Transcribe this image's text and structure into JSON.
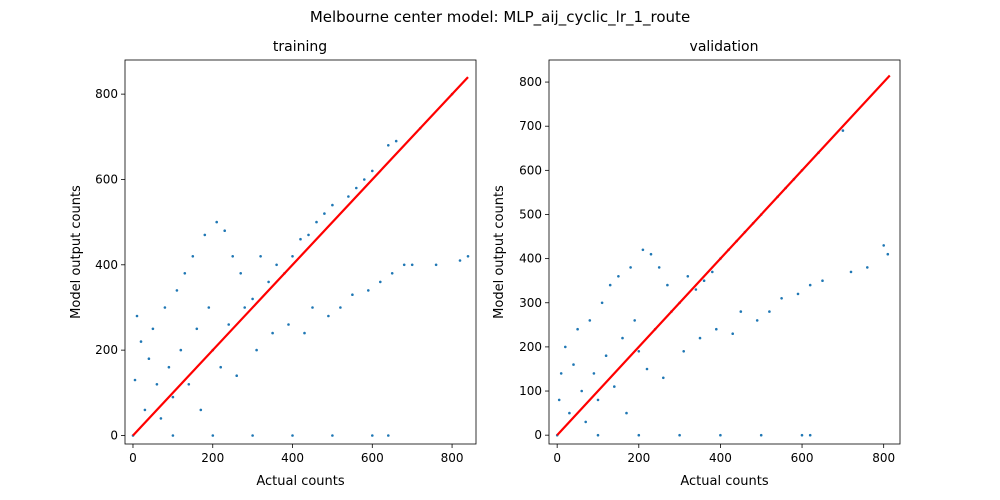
{
  "figure": {
    "suptitle": "Melbourne center model:  MLP_aij_cyclic_lr_1_route"
  },
  "colors": {
    "scatter": "#1f77b4",
    "fit_line": "#ff0000",
    "axes": "#000000",
    "background": "#ffffff"
  },
  "chart_data": [
    {
      "type": "scatter",
      "title": "training",
      "xlabel": "Actual counts",
      "ylabel": "Model output counts",
      "xlim": [
        -20,
        860
      ],
      "ylim": [
        -20,
        880
      ],
      "xticks": [
        0,
        200,
        400,
        600,
        800
      ],
      "yticks": [
        0,
        200,
        400,
        600,
        800
      ],
      "grid": false,
      "series": [
        {
          "kind": "scatter",
          "description_values": [
            [
              0,
              0
            ],
            [
              5,
              130
            ],
            [
              10,
              280
            ],
            [
              20,
              220
            ],
            [
              30,
              60
            ],
            [
              40,
              180
            ],
            [
              50,
              250
            ],
            [
              60,
              120
            ],
            [
              70,
              40
            ],
            [
              80,
              300
            ],
            [
              90,
              160
            ],
            [
              100,
              90
            ],
            [
              110,
              340
            ],
            [
              120,
              200
            ],
            [
              130,
              380
            ],
            [
              140,
              120
            ],
            [
              150,
              420
            ],
            [
              160,
              250
            ],
            [
              170,
              60
            ],
            [
              180,
              470
            ],
            [
              190,
              300
            ],
            [
              200,
              200
            ],
            [
              210,
              500
            ],
            [
              220,
              160
            ],
            [
              230,
              480
            ],
            [
              240,
              260
            ],
            [
              250,
              420
            ],
            [
              260,
              140
            ],
            [
              270,
              380
            ],
            [
              280,
              300
            ],
            [
              300,
              320
            ],
            [
              310,
              200
            ],
            [
              320,
              420
            ],
            [
              340,
              360
            ],
            [
              350,
              240
            ],
            [
              360,
              400
            ],
            [
              380,
              380
            ],
            [
              390,
              260
            ],
            [
              400,
              420
            ],
            [
              420,
              460
            ],
            [
              430,
              240
            ],
            [
              440,
              470
            ],
            [
              450,
              300
            ],
            [
              460,
              500
            ],
            [
              480,
              520
            ],
            [
              490,
              280
            ],
            [
              500,
              540
            ],
            [
              520,
              300
            ],
            [
              540,
              560
            ],
            [
              550,
              330
            ],
            [
              560,
              580
            ],
            [
              580,
              600
            ],
            [
              590,
              340
            ],
            [
              600,
              620
            ],
            [
              620,
              360
            ],
            [
              640,
              680
            ],
            [
              650,
              380
            ],
            [
              660,
              690
            ],
            [
              680,
              400
            ],
            [
              700,
              400
            ],
            [
              720,
              720
            ],
            [
              760,
              400
            ],
            [
              800,
              800
            ],
            [
              820,
              410
            ],
            [
              840,
              420
            ],
            [
              100,
              0
            ],
            [
              200,
              0
            ],
            [
              300,
              0
            ],
            [
              400,
              0
            ],
            [
              500,
              0
            ],
            [
              600,
              0
            ],
            [
              640,
              0
            ]
          ]
        },
        {
          "kind": "line",
          "x": [
            0,
            840
          ],
          "y": [
            0,
            840
          ]
        }
      ]
    },
    {
      "type": "scatter",
      "title": "validation",
      "xlabel": "Actual counts",
      "ylabel": "Model output counts",
      "xlim": [
        -20,
        840
      ],
      "ylim": [
        -20,
        850
      ],
      "xticks": [
        0,
        200,
        400,
        600,
        800
      ],
      "yticks": [
        0,
        100,
        200,
        300,
        400,
        500,
        600,
        700,
        800
      ],
      "grid": false,
      "series": [
        {
          "kind": "scatter",
          "description_values": [
            [
              0,
              0
            ],
            [
              5,
              80
            ],
            [
              10,
              140
            ],
            [
              20,
              200
            ],
            [
              30,
              50
            ],
            [
              40,
              160
            ],
            [
              50,
              240
            ],
            [
              60,
              100
            ],
            [
              70,
              30
            ],
            [
              80,
              260
            ],
            [
              90,
              140
            ],
            [
              100,
              80
            ],
            [
              110,
              300
            ],
            [
              120,
              180
            ],
            [
              130,
              340
            ],
            [
              140,
              110
            ],
            [
              150,
              360
            ],
            [
              160,
              220
            ],
            [
              170,
              50
            ],
            [
              180,
              380
            ],
            [
              190,
              260
            ],
            [
              200,
              190
            ],
            [
              210,
              420
            ],
            [
              220,
              150
            ],
            [
              230,
              410
            ],
            [
              240,
              240
            ],
            [
              250,
              380
            ],
            [
              260,
              130
            ],
            [
              270,
              340
            ],
            [
              280,
              280
            ],
            [
              300,
              300
            ],
            [
              310,
              190
            ],
            [
              320,
              360
            ],
            [
              340,
              330
            ],
            [
              350,
              220
            ],
            [
              360,
              350
            ],
            [
              380,
              370
            ],
            [
              390,
              240
            ],
            [
              400,
              400
            ],
            [
              420,
              420
            ],
            [
              430,
              230
            ],
            [
              440,
              440
            ],
            [
              450,
              280
            ],
            [
              460,
              460
            ],
            [
              480,
              480
            ],
            [
              490,
              260
            ],
            [
              500,
              500
            ],
            [
              520,
              280
            ],
            [
              540,
              540
            ],
            [
              550,
              310
            ],
            [
              560,
              560
            ],
            [
              580,
              580
            ],
            [
              590,
              320
            ],
            [
              600,
              600
            ],
            [
              620,
              340
            ],
            [
              640,
              640
            ],
            [
              650,
              350
            ],
            [
              700,
              690
            ],
            [
              720,
              370
            ],
            [
              760,
              380
            ],
            [
              800,
              430
            ],
            [
              810,
              410
            ],
            [
              100,
              0
            ],
            [
              200,
              0
            ],
            [
              300,
              0
            ],
            [
              400,
              0
            ],
            [
              500,
              0
            ],
            [
              600,
              0
            ],
            [
              620,
              0
            ]
          ]
        },
        {
          "kind": "line",
          "x": [
            0,
            815
          ],
          "y": [
            0,
            815
          ]
        }
      ]
    }
  ]
}
